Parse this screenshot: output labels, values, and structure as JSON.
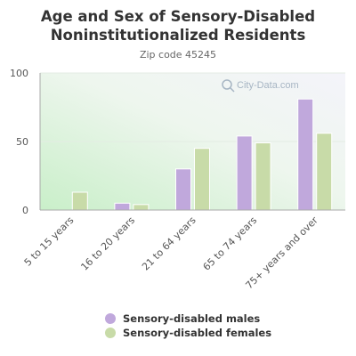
{
  "chart_data": {
    "type": "bar",
    "title_line1": "Age and Sex of Sensory-Disabled",
    "title_line2": "Noninstitutionalized Residents",
    "subtitle": "Zip code 45245",
    "watermark": "City-Data.com",
    "categories": [
      "5 to 15 years",
      "16 to 20 years",
      "21 to 64 years",
      "65 to 74 years",
      "75+ years and over"
    ],
    "series": [
      {
        "name": "Sensory-disabled males",
        "color": "#c0a8dc",
        "values": [
          0,
          5,
          30,
          54,
          81
        ]
      },
      {
        "name": "Sensory-disabled females",
        "color": "#c8dba8",
        "values": [
          13,
          4,
          45,
          49,
          56
        ]
      }
    ],
    "yticks": [
      "0",
      "50",
      "100"
    ],
    "ylim": [
      0,
      100
    ],
    "grid": true,
    "legend_position": "bottom"
  }
}
